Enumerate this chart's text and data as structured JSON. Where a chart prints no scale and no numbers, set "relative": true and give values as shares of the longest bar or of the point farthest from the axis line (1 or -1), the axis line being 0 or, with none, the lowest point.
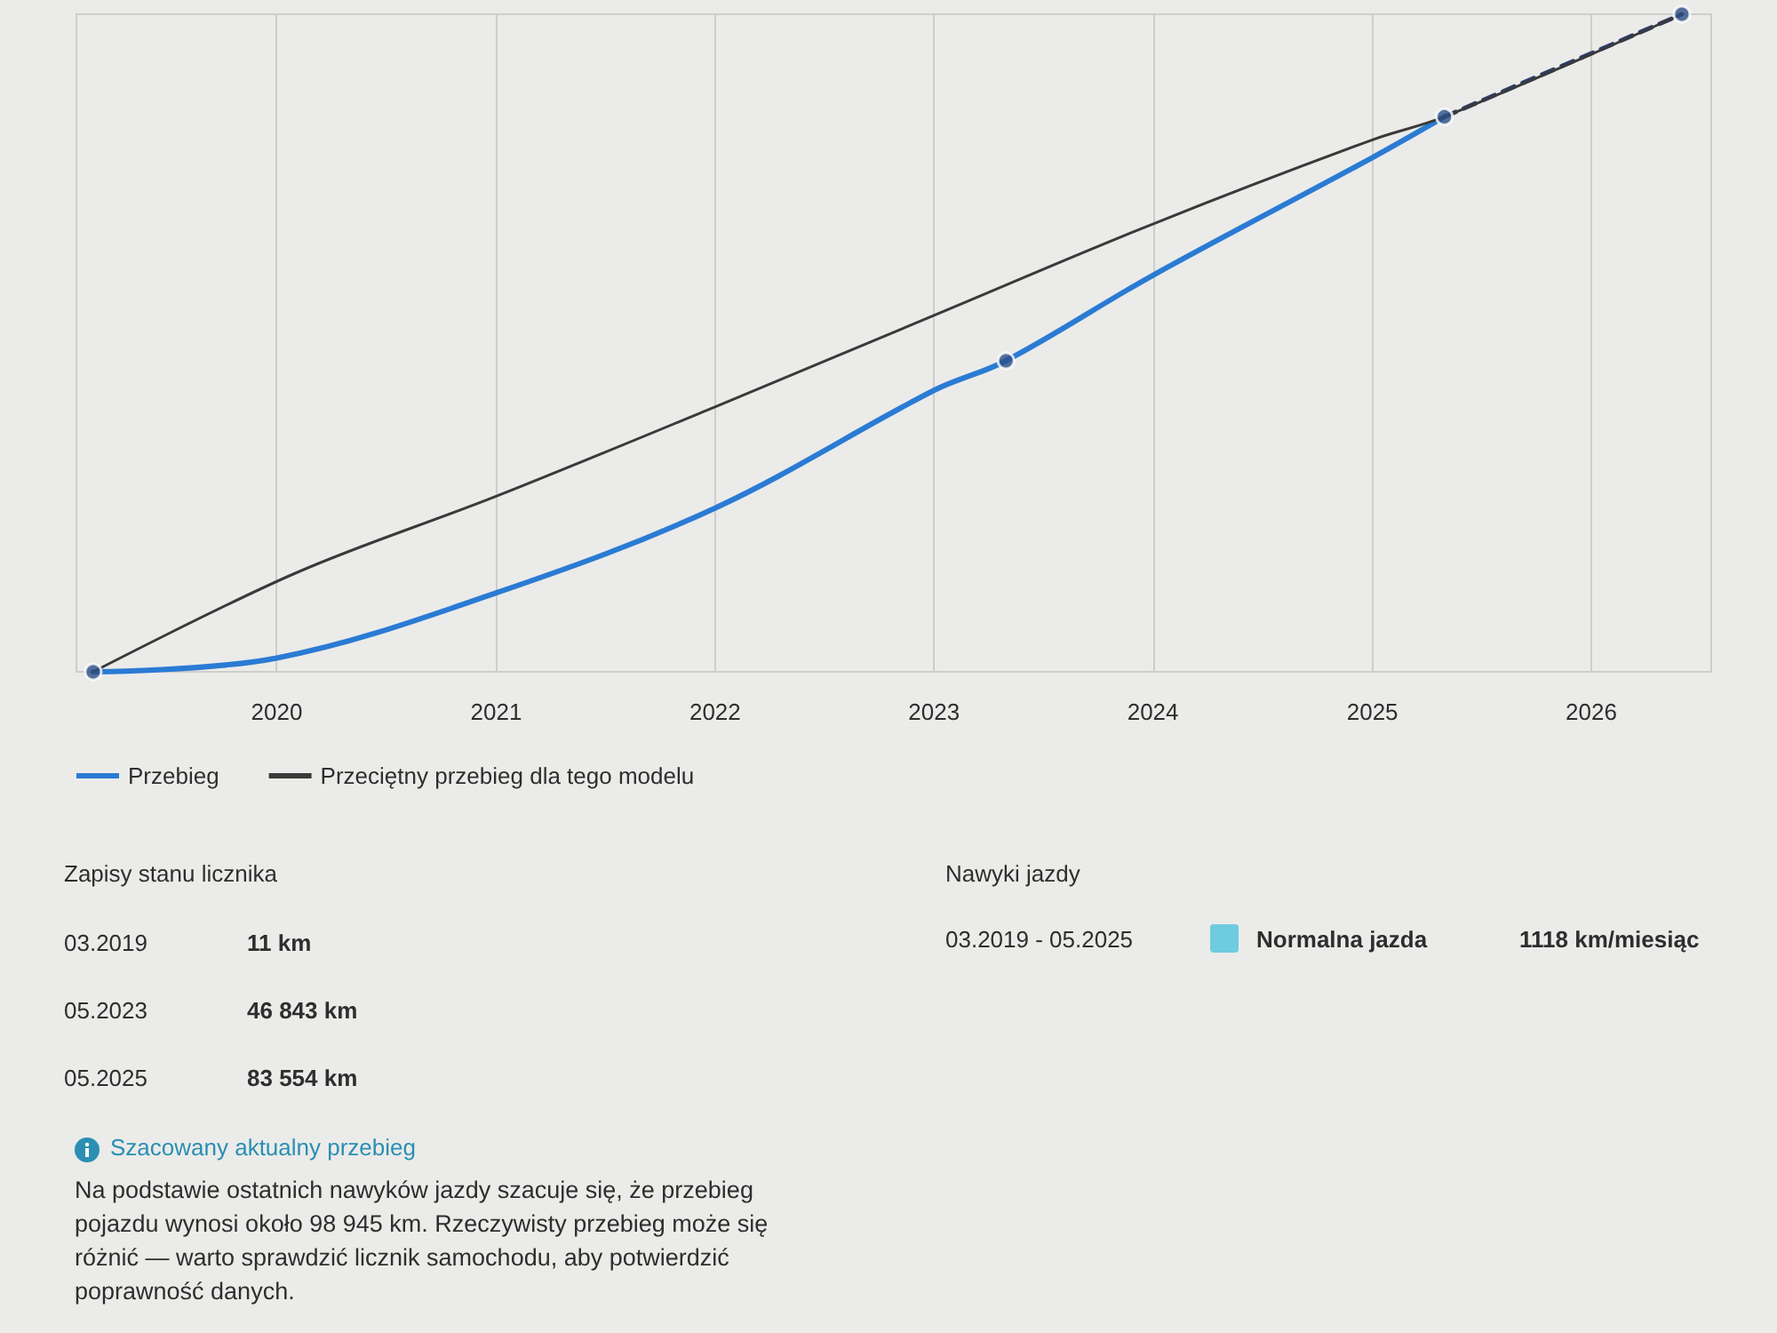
{
  "chart_data": [
    {
      "type": "line",
      "relative": true,
      "x": [
        "2019-03",
        "2020-01",
        "2021-01",
        "2022-01",
        "2023-01",
        "2023-05",
        "2024-01",
        "2025-01",
        "2025-05"
      ],
      "series": [
        {
          "name": "Przebieg",
          "color": "#2a7bd4",
          "values": [
            0,
            0.021,
            0.12,
            0.249,
            0.428,
            0.473,
            0.603,
            0.782,
            0.844
          ],
          "marker": "none"
        },
        {
          "type": "line",
          "color": "#2c3d6b",
          "line_style": "dashed",
          "x": [
            "2025-05",
            "2026-06"
          ],
          "values": [
            0.844,
            1
          ],
          "marker": "none"
        },
        {
          "type": "scatter",
          "color": "#2c4f86",
          "x": [
            "2019-03",
            "2023-05",
            "2025-05",
            "2026-06"
          ],
          "values": [
            0,
            0.473,
            0.844,
            1
          ],
          "marker": "circle"
        },
        {
          "name": "Przeciętny przebieg dla tego modelu",
          "color": "#3a3a3a",
          "x": [
            "2019-03",
            "2020-02",
            "2021-01",
            "2022-01",
            "2023-01",
            "2024-01",
            "2025-01",
            "2025-05",
            "2026-06"
          ],
          "values": [
            0,
            0.15,
            0.267,
            0.403,
            0.542,
            0.681,
            0.809,
            0.844,
            1
          ],
          "marker": "none"
        }
      ],
      "xlim": [
        "2019-02",
        "2026-07-20"
      ],
      "xticks": [
        "2020",
        "2021",
        "2022",
        "2023",
        "2024",
        "2025",
        "2026"
      ],
      "grid": "x",
      "legend": "bottom left",
      "line_style": "solid"
    },
    {
      "type": "other",
      "title": "Zapisy stanu licznika",
      "annotations": [
        "03.2019",
        "11 km",
        "05.2023",
        "46 843 km",
        "05.2025",
        "83 554 km"
      ]
    },
    {
      "type": "other",
      "title": "Nawyki jazdy",
      "annotations": [
        "03.2019 - 05.2025",
        "Normalna jazda",
        "1118 km/miesiąc"
      ],
      "color": "#6ecbe0"
    },
    {
      "type": "other",
      "title": "Szacowany aktualny przebieg",
      "annotations": [
        "Na podstawie ostatnich nawyków jazdy szacuje się, że przebieg pojazdu wynosi około 98 945 km. Rzeczywisty przebieg może się różnić — warto sprawdzić licznik samochodu, aby potwierdzić poprawność danych."
      ]
    }
  ]
}
